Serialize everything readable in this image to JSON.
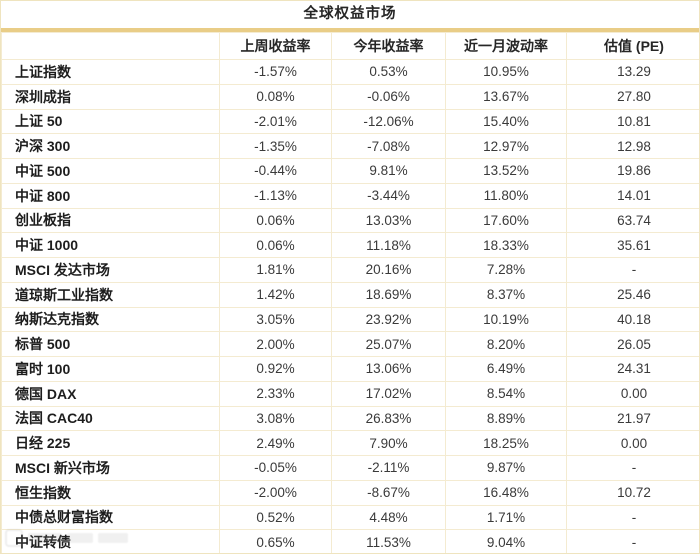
{
  "chart_data": {
    "type": "table",
    "title": "全球权益市场",
    "columns": [
      "",
      "上周收益率",
      "今年收益率",
      "近一月波动率",
      "估值 (PE)"
    ],
    "rows": [
      [
        "上证指数",
        "-1.57%",
        "0.53%",
        "10.95%",
        "13.29"
      ],
      [
        "深圳成指",
        "0.08%",
        "-0.06%",
        "13.67%",
        "27.80"
      ],
      [
        "上证 50",
        "-2.01%",
        "-12.06%",
        "15.40%",
        "10.81"
      ],
      [
        "沪深 300",
        "-1.35%",
        "-7.08%",
        "12.97%",
        "12.98"
      ],
      [
        "中证 500",
        "-0.44%",
        "9.81%",
        "13.52%",
        "19.86"
      ],
      [
        "中证 800",
        "-1.13%",
        "-3.44%",
        "11.80%",
        "14.01"
      ],
      [
        "创业板指",
        "0.06%",
        "13.03%",
        "17.60%",
        "63.74"
      ],
      [
        "中证 1000",
        "0.06%",
        "11.18%",
        "18.33%",
        "35.61"
      ],
      [
        "MSCI 发达市场",
        "1.81%",
        "20.16%",
        "7.28%",
        "-"
      ],
      [
        "道琼斯工业指数",
        "1.42%",
        "18.69%",
        "8.37%",
        "25.46"
      ],
      [
        "纳斯达克指数",
        "3.05%",
        "23.92%",
        "10.19%",
        "40.18"
      ],
      [
        "标普 500",
        "2.00%",
        "25.07%",
        "8.20%",
        "26.05"
      ],
      [
        "富时 100",
        "0.92%",
        "13.06%",
        "6.49%",
        "24.31"
      ],
      [
        "德国 DAX",
        "2.33%",
        "17.02%",
        "8.54%",
        "0.00"
      ],
      [
        "法国 CAC40",
        "3.08%",
        "26.83%",
        "8.89%",
        "21.97"
      ],
      [
        "日经 225",
        "2.49%",
        "7.90%",
        "18.25%",
        "0.00"
      ],
      [
        "MSCI 新兴市场",
        "-0.05%",
        "-2.11%",
        "9.87%",
        "-"
      ],
      [
        "恒生指数",
        "-2.00%",
        "-8.67%",
        "16.48%",
        "10.72"
      ],
      [
        "中债总财富指数",
        "0.52%",
        "4.48%",
        "1.71%",
        "-"
      ],
      [
        "中证转债",
        "0.65%",
        "11.53%",
        "9.04%",
        "-"
      ]
    ],
    "layout": {
      "grid": true,
      "header_bold": true,
      "first_column_align": "left",
      "value_align": "center"
    }
  },
  "colors": {
    "gold_band": "#e9cd87",
    "grid_line": "#f4ebd1",
    "outer_border": "#efe4bf",
    "label_text": "#1d1d1d",
    "value_text": "#3a3a3a",
    "background": "#ffffff"
  }
}
